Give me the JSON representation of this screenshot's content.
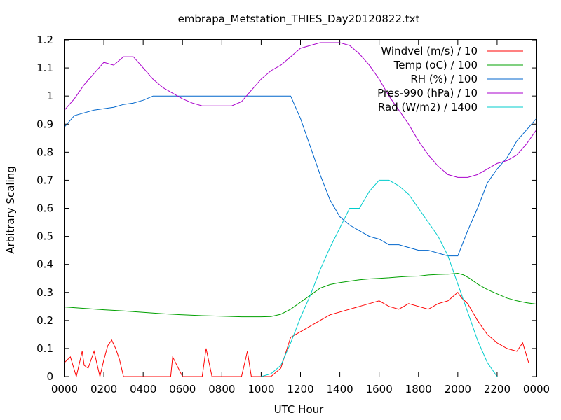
{
  "chart_data": {
    "type": "line",
    "title": "embrapa_Metstation_THIES_Day20120822.txt",
    "xlabel": "UTC Hour",
    "ylabel": "Arbitrary Scaling",
    "xlim": [
      0,
      24
    ],
    "ylim": [
      0,
      1.2
    ],
    "x_ticks": [
      {
        "v": 0,
        "label": "0000"
      },
      {
        "v": 2,
        "label": "0200"
      },
      {
        "v": 4,
        "label": "0400"
      },
      {
        "v": 6,
        "label": "0600"
      },
      {
        "v": 8,
        "label": "0800"
      },
      {
        "v": 10,
        "label": "1000"
      },
      {
        "v": 12,
        "label": "1200"
      },
      {
        "v": 14,
        "label": "1400"
      },
      {
        "v": 16,
        "label": "1600"
      },
      {
        "v": 18,
        "label": "1800"
      },
      {
        "v": 20,
        "label": "2000"
      },
      {
        "v": 22,
        "label": "2200"
      },
      {
        "v": 24,
        "label": "0000"
      }
    ],
    "y_ticks": [
      {
        "v": 0,
        "label": "0"
      },
      {
        "v": 0.1,
        "label": "0.1"
      },
      {
        "v": 0.2,
        "label": "0.2"
      },
      {
        "v": 0.3,
        "label": "0.3"
      },
      {
        "v": 0.4,
        "label": "0.4"
      },
      {
        "v": 0.5,
        "label": "0.5"
      },
      {
        "v": 0.6,
        "label": "0.6"
      },
      {
        "v": 0.7,
        "label": "0.7"
      },
      {
        "v": 0.8,
        "label": "0.8"
      },
      {
        "v": 0.9,
        "label": "0.9"
      },
      {
        "v": 1.0,
        "label": "1"
      },
      {
        "v": 1.1,
        "label": "1.1"
      },
      {
        "v": 1.2,
        "label": "1.2"
      }
    ],
    "grid": false,
    "legend_position": "top-right",
    "series": [
      {
        "name": "Windvel (m/s) / 10",
        "color": "#ff0000",
        "x": [
          0,
          0.3,
          0.6,
          0.9,
          1.0,
          1.2,
          1.5,
          1.8,
          2.0,
          2.2,
          2.4,
          2.6,
          2.8,
          3.0,
          3.5,
          4.0,
          4.5,
          5.4,
          5.5,
          6.0,
          6.1,
          6.5,
          7.0,
          7.2,
          7.5,
          8.0,
          9.0,
          9.3,
          9.5,
          10.0,
          10.5,
          11.0,
          11.5,
          12.0,
          12.5,
          13.0,
          13.5,
          14.0,
          14.5,
          15.0,
          15.5,
          16.0,
          16.5,
          17.0,
          17.5,
          18.0,
          18.5,
          19.0,
          19.5,
          20.0,
          20.2,
          20.5,
          21.0,
          21.5,
          22.0,
          22.5,
          23.0,
          23.3,
          23.6
        ],
        "values": [
          0.05,
          0.07,
          0.0,
          0.09,
          0.04,
          0.03,
          0.09,
          0.0,
          0.06,
          0.11,
          0.13,
          0.1,
          0.06,
          0.0,
          0.0,
          0.0,
          0.0,
          0.0,
          0.07,
          0.0,
          0.0,
          0.0,
          0.0,
          0.1,
          0.0,
          0.0,
          0.0,
          0.09,
          0.0,
          0.0,
          0.0,
          0.03,
          0.14,
          0.16,
          0.18,
          0.2,
          0.22,
          0.23,
          0.24,
          0.25,
          0.26,
          0.27,
          0.25,
          0.24,
          0.26,
          0.25,
          0.24,
          0.26,
          0.27,
          0.3,
          0.28,
          0.26,
          0.2,
          0.15,
          0.12,
          0.1,
          0.09,
          0.12,
          0.05
        ]
      },
      {
        "name": "Temp (oC) / 100",
        "color": "#00a000",
        "x": [
          0,
          1,
          2,
          3,
          4,
          5,
          6,
          7,
          8,
          9,
          10,
          10.5,
          11,
          11.5,
          12,
          12.5,
          13,
          13.5,
          14,
          14.5,
          15,
          15.5,
          16,
          16.5,
          17,
          17.5,
          18,
          18.5,
          19,
          19.5,
          20,
          20.3,
          20.6,
          21,
          21.5,
          22,
          22.5,
          23,
          23.5,
          24
        ],
        "values": [
          0.248,
          0.243,
          0.238,
          0.234,
          0.229,
          0.224,
          0.22,
          0.217,
          0.215,
          0.213,
          0.213,
          0.214,
          0.222,
          0.24,
          0.265,
          0.29,
          0.315,
          0.328,
          0.335,
          0.34,
          0.345,
          0.348,
          0.35,
          0.352,
          0.355,
          0.357,
          0.358,
          0.362,
          0.364,
          0.365,
          0.368,
          0.362,
          0.35,
          0.33,
          0.31,
          0.295,
          0.28,
          0.27,
          0.263,
          0.258
        ]
      },
      {
        "name": "RH (%) / 100",
        "color": "#0066cc",
        "x": [
          0,
          0.5,
          1,
          1.5,
          2,
          2.5,
          3,
          3.5,
          4,
          4.5,
          5,
          6,
          7,
          8,
          9,
          10,
          11,
          11.5,
          12,
          12.5,
          13,
          13.5,
          14,
          14.5,
          15,
          15.5,
          16,
          16.5,
          17,
          17.5,
          18,
          18.5,
          19,
          19.5,
          20,
          20.5,
          21,
          21.5,
          22,
          22.5,
          23,
          23.5,
          24
        ],
        "values": [
          0.89,
          0.93,
          0.94,
          0.95,
          0.955,
          0.96,
          0.97,
          0.975,
          0.985,
          1.0,
          1.0,
          1.0,
          1.0,
          1.0,
          1.0,
          1.0,
          1.0,
          1.0,
          0.92,
          0.82,
          0.72,
          0.63,
          0.57,
          0.54,
          0.52,
          0.5,
          0.49,
          0.47,
          0.47,
          0.46,
          0.45,
          0.45,
          0.44,
          0.43,
          0.43,
          0.52,
          0.6,
          0.69,
          0.74,
          0.78,
          0.84,
          0.88,
          0.92
        ]
      },
      {
        "name": "Pres-990 (hPa) / 10",
        "color": "#aa00cc",
        "x": [
          0,
          0.5,
          1,
          1.5,
          2,
          2.5,
          3,
          3.5,
          4,
          4.5,
          5,
          5.5,
          6,
          6.5,
          7,
          7.5,
          8,
          8.5,
          9,
          9.5,
          10,
          10.5,
          11,
          11.5,
          12,
          12.5,
          13,
          13.5,
          14,
          14.5,
          15,
          15.5,
          16,
          16.5,
          17,
          17.5,
          18,
          18.5,
          19,
          19.5,
          20,
          20.5,
          21,
          21.5,
          22,
          22.5,
          23,
          23.5,
          24
        ],
        "values": [
          0.95,
          0.99,
          1.04,
          1.08,
          1.12,
          1.11,
          1.14,
          1.14,
          1.1,
          1.06,
          1.03,
          1.01,
          0.99,
          0.975,
          0.965,
          0.965,
          0.965,
          0.965,
          0.98,
          1.02,
          1.06,
          1.09,
          1.11,
          1.14,
          1.17,
          1.18,
          1.19,
          1.19,
          1.19,
          1.18,
          1.15,
          1.11,
          1.06,
          1.0,
          0.95,
          0.9,
          0.84,
          0.79,
          0.75,
          0.72,
          0.71,
          0.71,
          0.72,
          0.74,
          0.76,
          0.77,
          0.79,
          0.83,
          0.88
        ]
      },
      {
        "name": "Rad (W/m2) / 1400",
        "color": "#00cccc",
        "x": [
          10,
          10.5,
          11,
          11.5,
          12,
          12.5,
          13,
          13.5,
          14,
          14.5,
          15,
          15.5,
          16,
          16.5,
          17,
          17.5,
          18,
          18.5,
          19,
          19.5,
          20,
          20.5,
          21,
          21.5,
          22
        ],
        "values": [
          0.0,
          0.01,
          0.04,
          0.12,
          0.21,
          0.29,
          0.38,
          0.46,
          0.53,
          0.6,
          0.6,
          0.66,
          0.7,
          0.7,
          0.68,
          0.65,
          0.6,
          0.55,
          0.5,
          0.43,
          0.33,
          0.23,
          0.13,
          0.05,
          0.0
        ]
      }
    ]
  }
}
